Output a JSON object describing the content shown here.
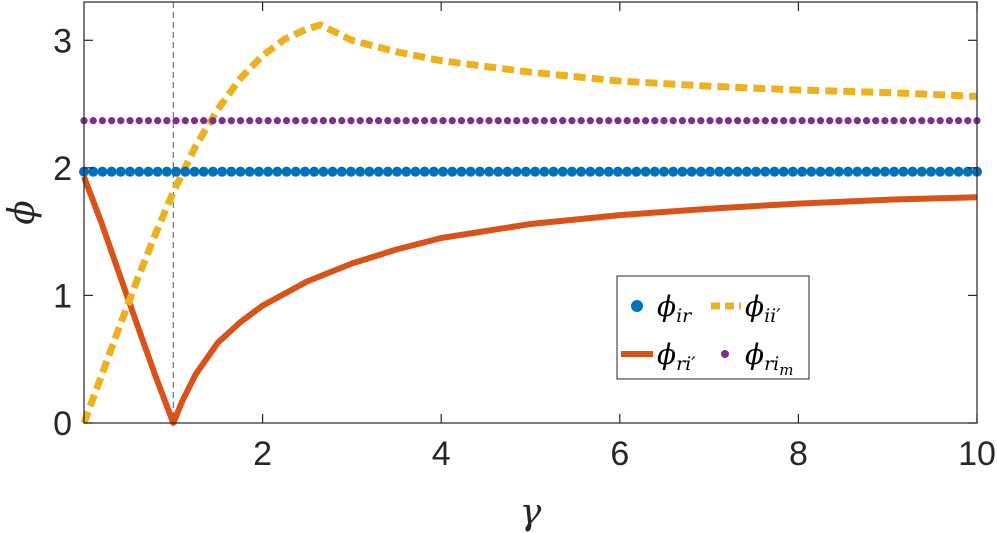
{
  "chart_data": {
    "type": "line",
    "xlabel": "γ",
    "ylabel": "ϕ",
    "xlim": [
      0,
      10
    ],
    "ylim": [
      0,
      3.3
    ],
    "x_ticks": [
      2,
      4,
      6,
      8,
      10
    ],
    "x_tick_labels": [
      "2",
      "4",
      "6",
      "8",
      "10"
    ],
    "y_ticks": [
      0,
      1,
      2,
      3
    ],
    "y_tick_labels": [
      "0",
      "1",
      "2",
      "3"
    ],
    "grid": false,
    "legend_placement": "lower-right",
    "reference_line": {
      "x": 1,
      "style": "dashed"
    },
    "series": [
      {
        "key": "ir",
        "label_main": "ϕ",
        "label_sub": "ir",
        "style": "dotted-markers",
        "color": "#0072BD",
        "x": [
          0,
          10
        ],
        "y": [
          1.97,
          1.97
        ]
      },
      {
        "key": "ii",
        "label_main": "ϕ",
        "label_sub": "ii′",
        "style": "dashed",
        "color": "#EDB120",
        "x": [
          0,
          0.2,
          0.4,
          0.6,
          0.8,
          1,
          1.25,
          1.5,
          1.75,
          2,
          2.25,
          2.5,
          2.65,
          3,
          3.5,
          4,
          5,
          6,
          7,
          8,
          9,
          10
        ],
        "y": [
          0,
          0.38,
          0.76,
          1.13,
          1.48,
          1.81,
          2.17,
          2.46,
          2.7,
          2.88,
          3.01,
          3.09,
          3.12,
          3.0,
          2.91,
          2.84,
          2.75,
          2.68,
          2.64,
          2.61,
          2.59,
          2.56
        ]
      },
      {
        "key": "ri",
        "label_main": "ϕ",
        "label_sub": "ri′",
        "style": "solid",
        "color": "#D95319",
        "x": [
          0,
          0.2,
          0.4,
          0.6,
          0.8,
          1,
          1.1,
          1.25,
          1.5,
          1.75,
          2,
          2.5,
          3,
          3.5,
          4,
          5,
          6,
          7,
          8,
          9,
          10
        ],
        "y": [
          1.93,
          1.56,
          1.16,
          0.76,
          0.37,
          0,
          0.17,
          0.38,
          0.63,
          0.79,
          0.92,
          1.11,
          1.25,
          1.36,
          1.45,
          1.56,
          1.63,
          1.68,
          1.72,
          1.75,
          1.77
        ]
      },
      {
        "key": "rim",
        "label_main": "ϕ",
        "label_sub": "ri",
        "label_subsub": "m",
        "style": "dotted-markers",
        "color": "#7E2F8E",
        "x": [
          0,
          10
        ],
        "y": [
          2.37,
          2.37
        ]
      }
    ]
  }
}
